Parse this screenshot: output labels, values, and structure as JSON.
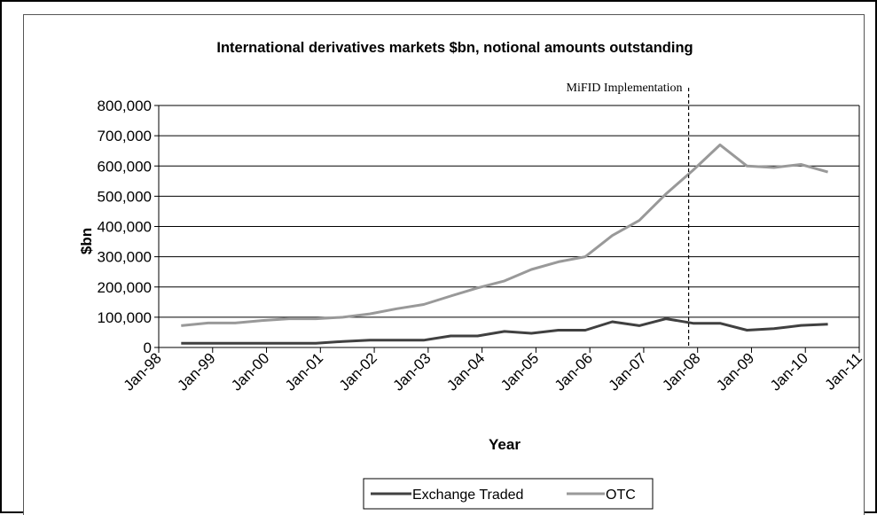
{
  "chart_data": {
    "type": "line",
    "title": "International derivatives markets $bn, notional amounts outstanding",
    "xlabel": "Year",
    "ylabel": "$bn",
    "ylim": [
      0,
      800000
    ],
    "yticks": [
      "0",
      "100,000",
      "200,000",
      "300,000",
      "400,000",
      "500,000",
      "600,000",
      "700,000",
      "800,000"
    ],
    "xticks": [
      "Jan-98",
      "Jan-99",
      "Jan-00",
      "Jan-01",
      "Jan-02",
      "Jan-03",
      "Jan-04",
      "Jan-05",
      "Jan-06",
      "Jan-07",
      "Jan-08",
      "Jan-09",
      "Jan-10",
      "Jan-11"
    ],
    "x": [
      "Jun-98",
      "Dec-98",
      "Jun-99",
      "Dec-99",
      "Jun-00",
      "Dec-00",
      "Jun-01",
      "Dec-01",
      "Jun-02",
      "Dec-02",
      "Jun-03",
      "Dec-03",
      "Jun-04",
      "Dec-04",
      "Jun-05",
      "Dec-05",
      "Jun-06",
      "Dec-06",
      "Jun-07",
      "Dec-07",
      "Jun-08",
      "Dec-08",
      "Jun-09",
      "Dec-09",
      "Jun-10"
    ],
    "series": [
      {
        "name": "Exchange Traded",
        "color": "#404040",
        "values": [
          14000,
          14000,
          14000,
          14000,
          14000,
          14000,
          20000,
          24000,
          24000,
          24000,
          38000,
          38000,
          53000,
          47000,
          57000,
          57000,
          85000,
          72000,
          95000,
          80000,
          80000,
          57000,
          62000,
          73000,
          77000
        ]
      },
      {
        "name": "OTC",
        "color": "#999999",
        "values": [
          72000,
          81000,
          81000,
          89000,
          95000,
          95000,
          100000,
          111000,
          128000,
          142000,
          170000,
          197000,
          220000,
          258000,
          283000,
          300000,
          370000,
          420000,
          508000,
          586000,
          670000,
          600000,
          595000,
          605000,
          580000
        ]
      }
    ],
    "annotations": [
      {
        "label": "MiFID Implementation",
        "x": "Nov-07",
        "style": "dashed-vertical-line"
      }
    ],
    "grid": "horizontal",
    "legend": "bottom"
  }
}
